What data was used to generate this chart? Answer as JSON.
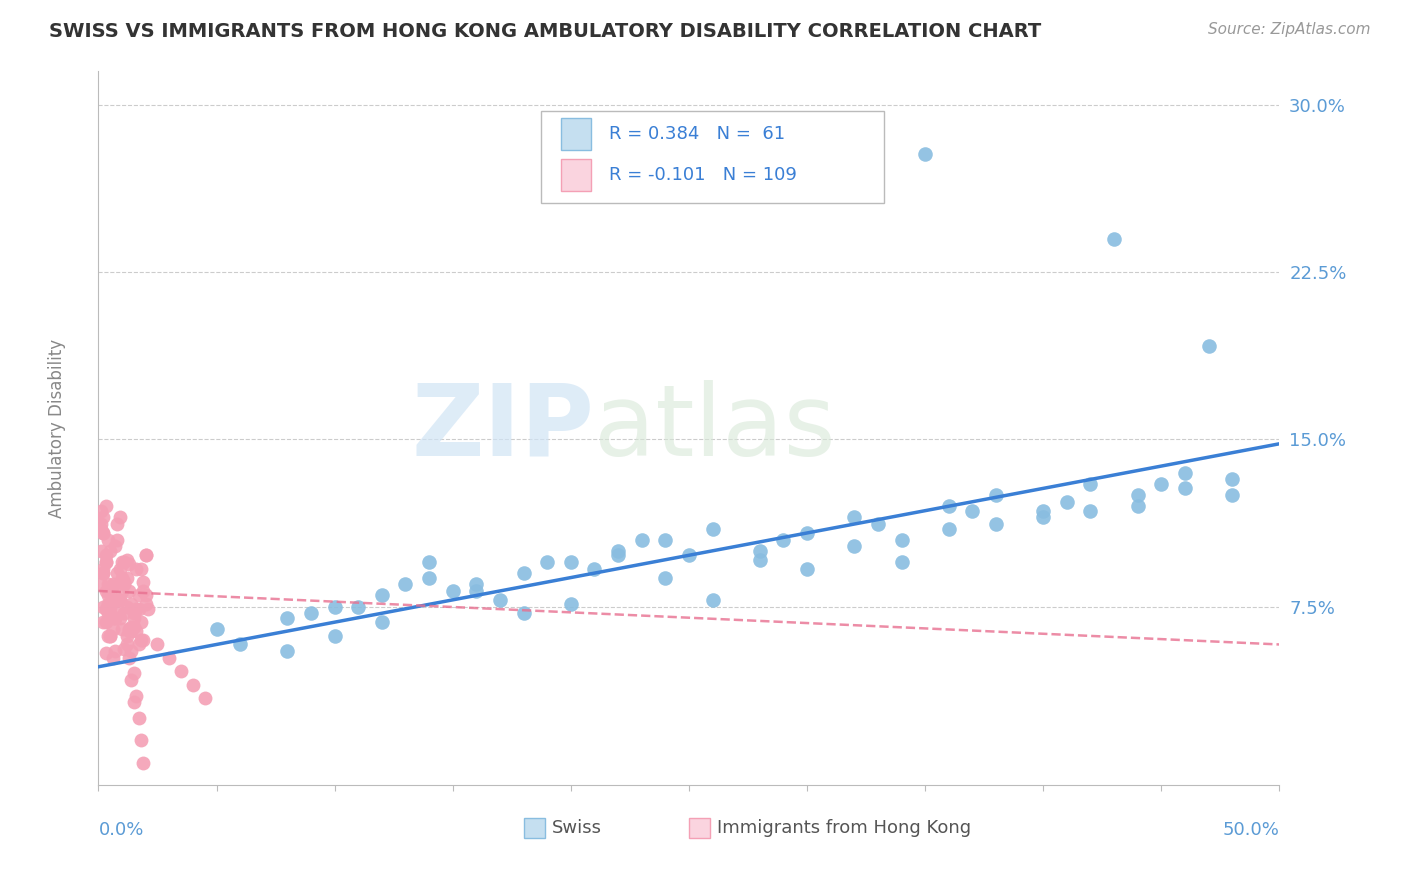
{
  "title": "SWISS VS IMMIGRANTS FROM HONG KONG AMBULATORY DISABILITY CORRELATION CHART",
  "source": "Source: ZipAtlas.com",
  "ylabel": "Ambulatory Disability",
  "swiss_R": 0.384,
  "swiss_N": 61,
  "hk_R": -0.101,
  "hk_N": 109,
  "background_color": "#ffffff",
  "swiss_color": "#89bde0",
  "swiss_color_light": "#c5dff0",
  "hk_color": "#f4a0b5",
  "hk_color_light": "#fad4df",
  "trend_blue": "#3a7fd5",
  "trend_pink": "#e87090",
  "xlim": [
    0.0,
    0.5
  ],
  "ylim": [
    -0.005,
    0.315
  ],
  "yticks": [
    0.075,
    0.15,
    0.225,
    0.3
  ],
  "ytick_labels": [
    "7.5%",
    "15.0%",
    "22.5%",
    "30.0%"
  ],
  "title_color": "#333333",
  "source_color": "#999999",
  "axis_color": "#bbbbbb",
  "watermark_zip": "ZIP",
  "watermark_atlas": "atlas",
  "swiss_x": [
    0.05,
    0.08,
    0.1,
    0.12,
    0.14,
    0.16,
    0.18,
    0.2,
    0.22,
    0.24,
    0.26,
    0.28,
    0.3,
    0.32,
    0.34,
    0.36,
    0.38,
    0.4,
    0.42,
    0.44,
    0.46,
    0.48,
    0.1,
    0.14,
    0.18,
    0.22,
    0.26,
    0.3,
    0.34,
    0.38,
    0.42,
    0.46,
    0.08,
    0.12,
    0.16,
    0.2,
    0.24,
    0.28,
    0.32,
    0.36,
    0.4,
    0.44,
    0.48,
    0.06,
    0.09,
    0.13,
    0.17,
    0.21,
    0.25,
    0.29,
    0.33,
    0.37,
    0.41,
    0.45,
    0.11,
    0.15,
    0.19,
    0.23,
    0.35,
    0.43,
    0.47
  ],
  "swiss_y": [
    0.065,
    0.07,
    0.075,
    0.08,
    0.095,
    0.085,
    0.09,
    0.095,
    0.1,
    0.105,
    0.11,
    0.1,
    0.108,
    0.115,
    0.095,
    0.12,
    0.125,
    0.118,
    0.13,
    0.12,
    0.135,
    0.125,
    0.062,
    0.088,
    0.072,
    0.098,
    0.078,
    0.092,
    0.105,
    0.112,
    0.118,
    0.128,
    0.055,
    0.068,
    0.082,
    0.076,
    0.088,
    0.096,
    0.102,
    0.11,
    0.115,
    0.125,
    0.132,
    0.058,
    0.072,
    0.085,
    0.078,
    0.092,
    0.098,
    0.105,
    0.112,
    0.118,
    0.122,
    0.13,
    0.075,
    0.082,
    0.095,
    0.105,
    0.278,
    0.24,
    0.192
  ],
  "hk_x": [
    0.002,
    0.003,
    0.004,
    0.005,
    0.006,
    0.007,
    0.008,
    0.009,
    0.01,
    0.011,
    0.012,
    0.013,
    0.014,
    0.015,
    0.016,
    0.017,
    0.018,
    0.019,
    0.02,
    0.021,
    0.002,
    0.004,
    0.006,
    0.008,
    0.01,
    0.012,
    0.014,
    0.016,
    0.018,
    0.02,
    0.003,
    0.005,
    0.007,
    0.009,
    0.011,
    0.013,
    0.015,
    0.017,
    0.019,
    0.002,
    0.004,
    0.006,
    0.008,
    0.01,
    0.012,
    0.014,
    0.016,
    0.018,
    0.02,
    0.003,
    0.005,
    0.007,
    0.009,
    0.011,
    0.013,
    0.015,
    0.017,
    0.019,
    0.001,
    0.002,
    0.003,
    0.004,
    0.005,
    0.006,
    0.007,
    0.008,
    0.009,
    0.01,
    0.011,
    0.012,
    0.013,
    0.014,
    0.015,
    0.016,
    0.017,
    0.018,
    0.019,
    0.02,
    0.001,
    0.002,
    0.003,
    0.004,
    0.005,
    0.006,
    0.007,
    0.008,
    0.009,
    0.01,
    0.011,
    0.012,
    0.013,
    0.014,
    0.015,
    0.001,
    0.002,
    0.003,
    0.025,
    0.03,
    0.035,
    0.04,
    0.045,
    0.003,
    0.002,
    0.001,
    0.004,
    0.005,
    0.003,
    0.002,
    0.001
  ],
  "hk_y": [
    0.075,
    0.068,
    0.08,
    0.072,
    0.085,
    0.078,
    0.09,
    0.07,
    0.065,
    0.095,
    0.088,
    0.082,
    0.076,
    0.07,
    0.064,
    0.058,
    0.092,
    0.086,
    0.08,
    0.074,
    0.068,
    0.076,
    0.084,
    0.072,
    0.088,
    0.096,
    0.064,
    0.092,
    0.06,
    0.098,
    0.074,
    0.082,
    0.07,
    0.078,
    0.086,
    0.094,
    0.066,
    0.074,
    0.082,
    0.09,
    0.062,
    0.07,
    0.078,
    0.086,
    0.058,
    0.066,
    0.074,
    0.068,
    0.076,
    0.054,
    0.062,
    0.07,
    0.078,
    0.056,
    0.064,
    0.072,
    0.08,
    0.06,
    0.1,
    0.108,
    0.095,
    0.085,
    0.075,
    0.065,
    0.055,
    0.105,
    0.115,
    0.095,
    0.085,
    0.075,
    0.065,
    0.055,
    0.045,
    0.035,
    0.025,
    0.015,
    0.005,
    0.098,
    0.112,
    0.092,
    0.082,
    0.072,
    0.062,
    0.052,
    0.102,
    0.112,
    0.092,
    0.082,
    0.072,
    0.062,
    0.052,
    0.042,
    0.032,
    0.118,
    0.108,
    0.098,
    0.058,
    0.052,
    0.046,
    0.04,
    0.034,
    0.12,
    0.115,
    0.11,
    0.105,
    0.1,
    0.095,
    0.09,
    0.085
  ],
  "blue_trend_x0": 0.0,
  "blue_trend_y0": 0.048,
  "blue_trend_x1": 0.5,
  "blue_trend_y1": 0.148,
  "pink_trend_x0": 0.0,
  "pink_trend_y0": 0.082,
  "pink_trend_x1": 0.5,
  "pink_trend_y1": 0.058
}
